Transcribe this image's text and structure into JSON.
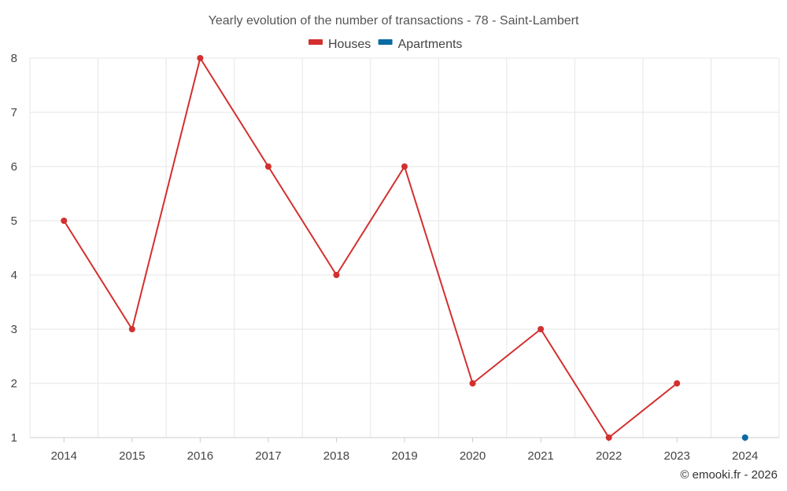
{
  "chart_data": {
    "type": "line",
    "title": "Yearly evolution of the number of transactions - 78 - Saint-Lambert",
    "xlabel": "",
    "ylabel": "",
    "categories": [
      "2014",
      "2015",
      "2016",
      "2017",
      "2018",
      "2019",
      "2020",
      "2021",
      "2022",
      "2023",
      "2024"
    ],
    "y_ticks": [
      1,
      2,
      3,
      4,
      5,
      6,
      7,
      8
    ],
    "ylim": [
      1,
      8
    ],
    "grid": true,
    "legend_position": "top-center",
    "series": [
      {
        "name": "Houses",
        "color": "#d32f2f",
        "values": [
          5,
          3,
          8,
          6,
          4,
          6,
          2,
          3,
          1,
          2,
          null
        ]
      },
      {
        "name": "Apartments",
        "color": "#0b6aa2",
        "values": [
          null,
          null,
          null,
          null,
          null,
          null,
          null,
          null,
          null,
          null,
          1
        ]
      }
    ]
  },
  "credit": "© emooki.fr - 2026"
}
